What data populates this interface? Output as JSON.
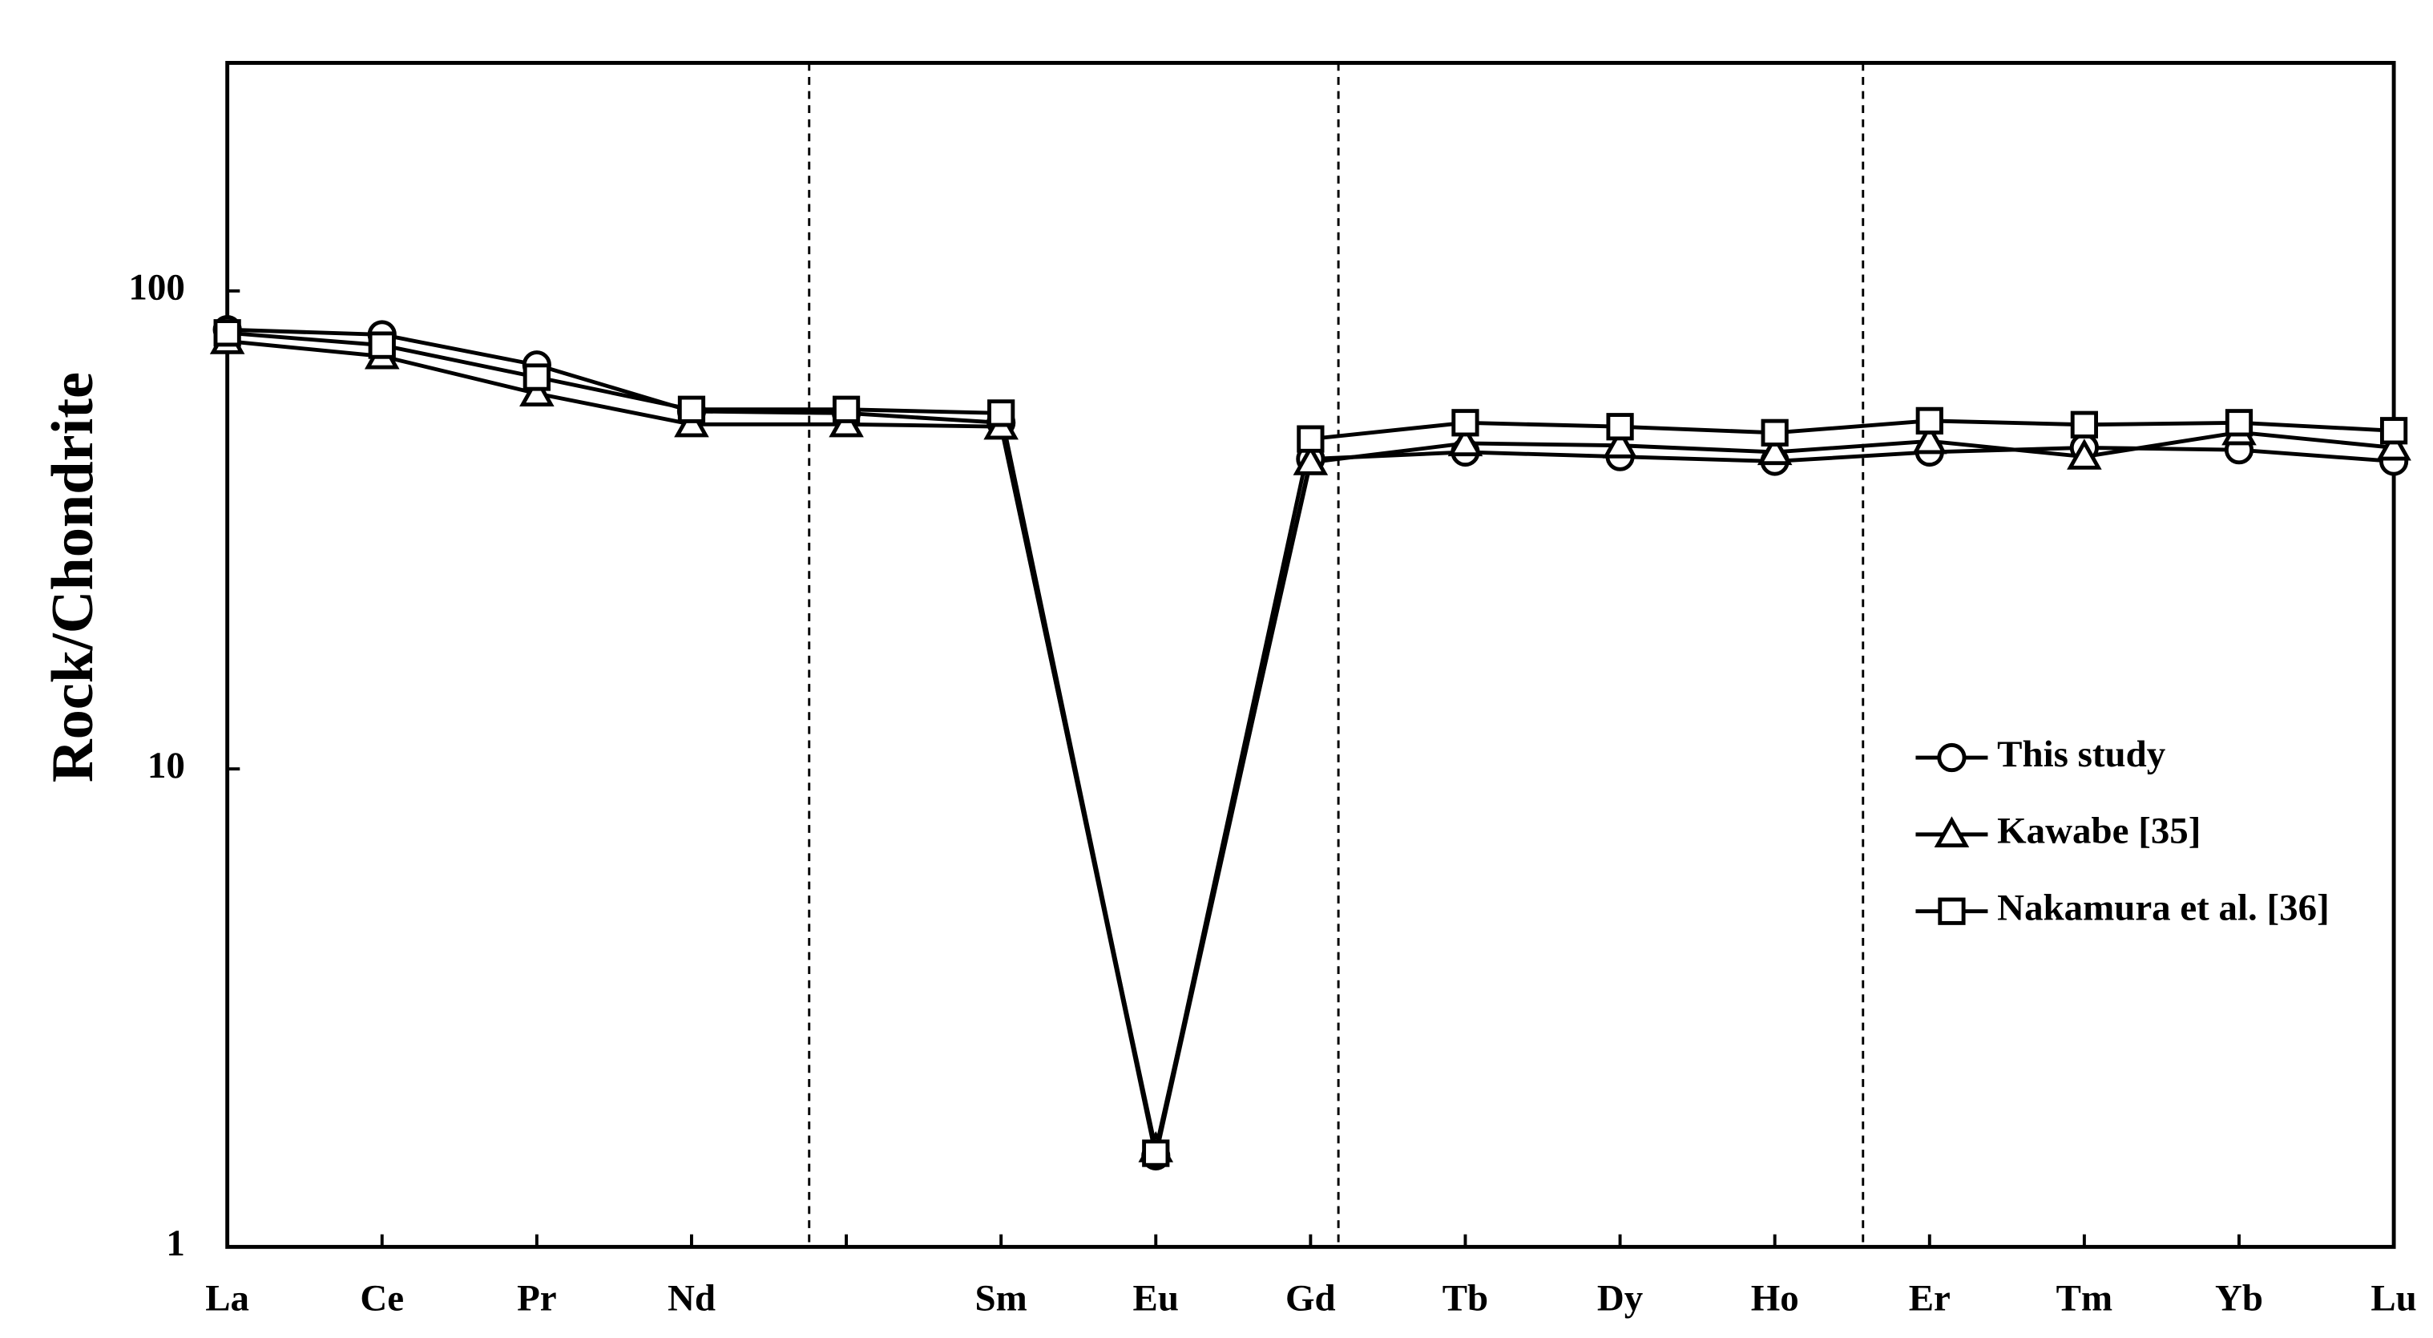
{
  "chart_data": {
    "type": "line",
    "y_label": "Rock/Chondrite",
    "log_scale": true,
    "legend": "right",
    "categories": [
      "La",
      "Ce",
      "Pr",
      "Nd",
      null,
      "Sm",
      "Eu",
      "Gd",
      "Tb",
      "Dy",
      "Ho",
      "Er",
      "Tm",
      "Yb",
      "Lu"
    ],
    "ylim": [
      1,
      300
    ],
    "yticks": [
      1,
      10,
      100
    ],
    "series": [
      {
        "name": "This study",
        "color": "#000000",
        "marker": "circle",
        "values": [
          83,
          81,
          70,
          56,
          55.5,
          53,
          1.55,
          44.5,
          46,
          45,
          44,
          46,
          47,
          46.5,
          44
        ]
      },
      {
        "name": "Kawabe [35]",
        "color": "#000000",
        "marker": "triangle",
        "values": [
          78.5,
          73,
          61,
          52.6,
          52.6,
          52,
          1.6,
          43.8,
          48,
          47.5,
          46,
          48.5,
          45,
          50.6,
          47
        ]
      },
      {
        "name": "Nakamura et al. [36]",
        "color": "#000000",
        "marker": "square",
        "values": [
          81.7,
          77,
          66,
          56.5,
          56.5,
          55.5,
          1.57,
          49,
          53,
          52,
          50.5,
          53.5,
          52.5,
          53,
          51
        ]
      }
    ]
  }
}
